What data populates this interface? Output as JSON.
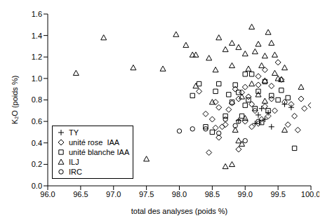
{
  "chart_data": {
    "type": "scatter",
    "x_label": "total des analyses (poids %)",
    "y_label": "K₂O (poids %)",
    "xlim": [
      96,
      100
    ],
    "xticks": [
      {
        "value": 96,
        "label": "96.0"
      },
      96.5,
      {
        "value": 97,
        "label": "97.0"
      },
      97.5,
      {
        "value": 98,
        "label": "98.0"
      },
      98.5,
      {
        "value": 99,
        "label": "99.0"
      },
      99.5,
      {
        "value": 100,
        "label": "100.0"
      }
    ],
    "ylim": [
      0,
      1.6
    ],
    "yticks": [
      {
        "value": 0,
        "label": "0.0"
      },
      0.2,
      0.4,
      0.6,
      0.8,
      {
        "value": 1,
        "label": "1.0"
      },
      1.2,
      1.4,
      1.6
    ],
    "grid": false,
    "legend": "lower left",
    "series": [
      {
        "name": "TY",
        "color": "#000000",
        "marker": "cross",
        "x": [
          98.9,
          99.2,
          99.25,
          99.3,
          99.15,
          99.4,
          99.6,
          99.7,
          99.35
        ],
        "values": [
          0.61,
          0.66,
          0.72,
          0.62,
          0.58,
          0.55,
          0.76,
          0.73,
          0.68
        ]
      },
      {
        "name": "unité rose  IAA",
        "color": "#000000",
        "marker": "diamond",
        "x": [
          98.3,
          98.4,
          98.45,
          98.5,
          98.55,
          98.6,
          98.6,
          98.65,
          98.7,
          98.75,
          98.8,
          98.85,
          98.9,
          98.95,
          99.0,
          99.0,
          99.05,
          99.1,
          99.1,
          99.15,
          99.2,
          99.2,
          99.25,
          99.3,
          99.3,
          99.35,
          99.4,
          99.45,
          99.5,
          99.55,
          99.6,
          99.65,
          99.7,
          99.75,
          99.8,
          99.9,
          100.0,
          99.85,
          98.9,
          98.55,
          99.2,
          99.4
        ],
        "values": [
          0.88,
          0.67,
          0.31,
          0.62,
          0.54,
          0.73,
          0.45,
          0.55,
          0.57,
          0.71,
          0.77,
          0.9,
          0.81,
          0.87,
          0.92,
          0.6,
          0.83,
          0.76,
          0.55,
          0.7,
          0.94,
          0.58,
          0.62,
          0.74,
          1.08,
          0.65,
          0.81,
          0.7,
          1.15,
          0.99,
          0.78,
          0.57,
          0.76,
          0.65,
          0.52,
          0.72,
          0.75,
          0.81,
          0.34,
          0.78,
          1.02,
          0.93
        ]
      },
      {
        "name": "unité blanche IAA",
        "color": "#000000",
        "marker": "square",
        "x": [
          98.2,
          98.3,
          98.4,
          98.5,
          98.55,
          98.6,
          98.7,
          98.75,
          98.8,
          98.85,
          98.9,
          98.95,
          99.0,
          99.05,
          99.1,
          99.15,
          99.2,
          99.25,
          99.3,
          99.35,
          99.4,
          99.5,
          99.55,
          99.65,
          99.75,
          99.0
        ],
        "values": [
          0.84,
          0.95,
          0.55,
          0.5,
          0.88,
          0.95,
          0.65,
          0.85,
          0.78,
          0.94,
          0.87,
          0.65,
          1.04,
          0.8,
          1.04,
          0.72,
          0.88,
          0.59,
          0.97,
          0.7,
          0.84,
          0.8,
          0.89,
          0.82,
          0.35,
          0.75
        ]
      },
      {
        "name": "ILJ",
        "color": "#000000",
        "marker": "triangle",
        "x": [
          96.43,
          96.85,
          97.3,
          97.5,
          97.75,
          97.95,
          98.1,
          98.2,
          98.25,
          98.45,
          98.55,
          98.6,
          98.7,
          98.8,
          98.8,
          98.9,
          98.9,
          98.95,
          99.0,
          99.05,
          99.1,
          99.15,
          99.2,
          99.25,
          99.3,
          99.35,
          99.4,
          99.45,
          99.5,
          99.45,
          99.6,
          99.55,
          99.3,
          99.1,
          98.95,
          98.85,
          99.0,
          98.7,
          99.2,
          99.3,
          99.85,
          99.6,
          98.25,
          98.5,
          98.8
        ],
        "values": [
          1.05,
          1.38,
          1.1,
          0.25,
          1.09,
          1.41,
          1.31,
          1.22,
          1.22,
          1.19,
          1.08,
          1.38,
          1.27,
          1.33,
          1.12,
          1.29,
          0.42,
          0.39,
          1.23,
          1.09,
          1.48,
          1.25,
          1.32,
          1.12,
          1.21,
          1.43,
          1.33,
          1.05,
          1.0,
          1.22,
          1.1,
          0.99,
          0.98,
          0.95,
          0.83,
          0.52,
          0.63,
          0.18,
          0.85,
          0.79,
          0.92,
          0.52,
          0.93,
          0.78,
          0.2
        ]
      },
      {
        "name": "IRC",
        "color": "#000000",
        "marker": "circle",
        "x": [
          98.0,
          98.2,
          98.4,
          98.6,
          98.7,
          98.85,
          98.9,
          99.0,
          99.2
        ],
        "values": [
          0.51,
          0.53,
          0.53,
          0.49,
          0.62,
          0.56,
          0.6,
          0.42,
          0.6
        ]
      }
    ]
  }
}
